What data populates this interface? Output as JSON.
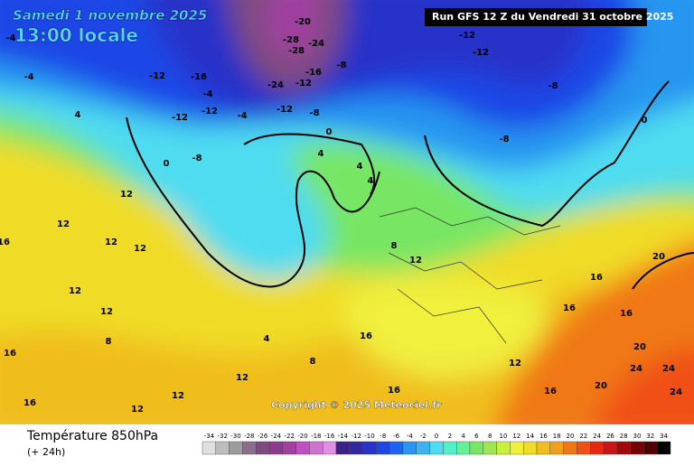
{
  "header": {
    "title": "Samedi 1 novembre 2025",
    "subtitle": "13:00 locale",
    "run": "Run GFS 12 Z du Vendredi 31 octobre 2025"
  },
  "map": {
    "copyright": "Copyright © 2025 Meteociel.fr",
    "contour_labels": [
      -20,
      -28,
      -24,
      -28,
      -16,
      -24,
      -12,
      -8,
      -12,
      -12,
      -8,
      -8,
      0,
      -12,
      -16,
      -4,
      -12,
      -12,
      -4,
      -12,
      -8,
      -8,
      0,
      4,
      4,
      0,
      4,
      12,
      12,
      12,
      12,
      8,
      12,
      16,
      16,
      16,
      20,
      20,
      24,
      24,
      24,
      20,
      16,
      12,
      12,
      12,
      12,
      8,
      4,
      16,
      16,
      8,
      -4,
      -4,
      4,
      16,
      16,
      16,
      12,
      12
    ]
  },
  "footer": {
    "label": "Température 850hPa",
    "step": "(+ 24h)"
  },
  "legend": {
    "values": [
      -34,
      -32,
      -30,
      -28,
      -26,
      -24,
      -22,
      -20,
      -18,
      -16,
      -14,
      -12,
      -10,
      -8,
      -6,
      -4,
      -2,
      0,
      2,
      4,
      6,
      8,
      10,
      12,
      14,
      16,
      18,
      20,
      22,
      24,
      26,
      28,
      30,
      32,
      34
    ],
    "colors": [
      "#e0e0e0",
      "#bdbdbd",
      "#9c9c9c",
      "#8c6e8c",
      "#7d4b7d",
      "#8c3c8c",
      "#a040a0",
      "#c050c0",
      "#d070d0",
      "#e090e0",
      "#3c1e8c",
      "#3228a0",
      "#2832c8",
      "#1e46e6",
      "#1e64f0",
      "#2896f0",
      "#3cb4f0",
      "#50dcf0",
      "#50f0c8",
      "#64f096",
      "#78e664",
      "#a0e650",
      "#c8f03c",
      "#f0f03c",
      "#f0dc28",
      "#f0be1e",
      "#f0a01e",
      "#f07814",
      "#f05014",
      "#e62814",
      "#c81414",
      "#a00a0a",
      "#780000",
      "#500000",
      "#000000"
    ]
  }
}
